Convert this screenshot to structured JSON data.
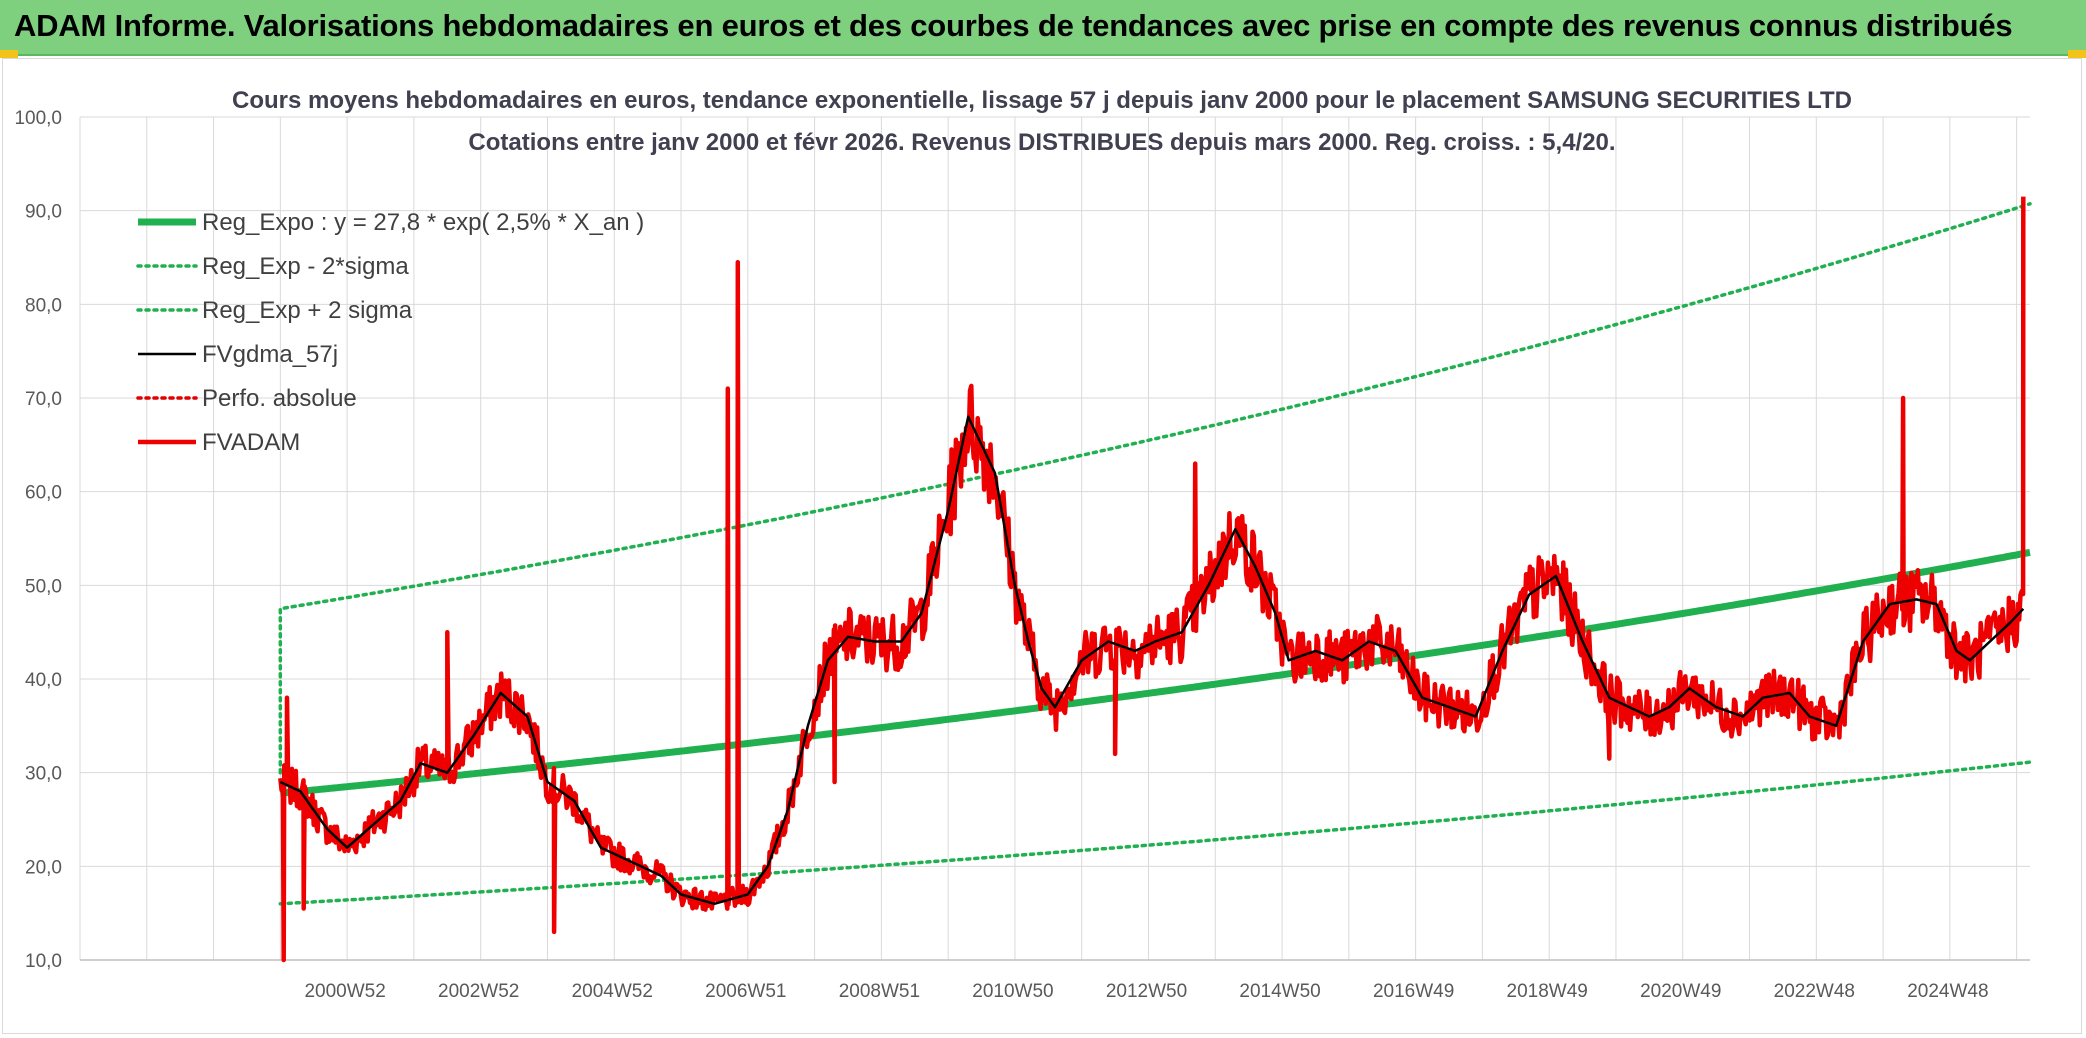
{
  "banner": {
    "title": "ADAM Informe. Valorisations hebdomadaires en euros et des courbes de tendances avec prise en compte des revenus connus distribués",
    "accent": "#7ed07e"
  },
  "chart_data": {
    "type": "line",
    "title": "Cours moyens hebdomadaires en euros, tendance exponentielle, lissage 57 j depuis janv 2000 pour le placement SAMSUNG SECURITIES LTD",
    "subtitle": "Cotations entre janv 2000 et févr 2026. Revenus DISTRIBUES depuis mars 2000. Reg. croiss. : 5,4/20.",
    "xlabel": "",
    "ylabel": "",
    "ylim": [
      10,
      100
    ],
    "xlim": [
      1997.0,
      2026.2
    ],
    "yticks": [
      "10,0",
      "20,0",
      "30,0",
      "40,0",
      "50,0",
      "60,0",
      "70,0",
      "80,0",
      "90,0",
      "100,0"
    ],
    "xticks": [
      {
        "label": "2000W52",
        "x": 2001.0
      },
      {
        "label": "2002W52",
        "x": 2003.0
      },
      {
        "label": "2004W52",
        "x": 2005.0
      },
      {
        "label": "2006W51",
        "x": 2007.0
      },
      {
        "label": "2008W51",
        "x": 2009.0
      },
      {
        "label": "2010W50",
        "x": 2011.0
      },
      {
        "label": "2012W50",
        "x": 2013.0
      },
      {
        "label": "2014W50",
        "x": 2015.0
      },
      {
        "label": "2016W49",
        "x": 2017.0
      },
      {
        "label": "2018W49",
        "x": 2019.0
      },
      {
        "label": "2020W49",
        "x": 2021.0
      },
      {
        "label": "2022W48",
        "x": 2023.0
      },
      {
        "label": "2024W48",
        "x": 2025.0
      }
    ],
    "grid": true,
    "legend_position": "top-left",
    "series": [
      {
        "name": "Reg_Expo : y = 27,8 * exp( 2,5% *  X_an )",
        "color": "#20b050",
        "style": "solid-thick",
        "kind": "exp",
        "a": 27.8,
        "rate": 0.025,
        "x0": 2000.0,
        "x_end": 2026.2
      },
      {
        "name": "Reg_Exp - 2*sigma",
        "color": "#20b050",
        "style": "dotted",
        "kind": "exp",
        "a": 16.0,
        "rate": 0.0254,
        "x0": 2000.0,
        "x_end": 2026.2
      },
      {
        "name": "Reg_Exp + 2 sigma",
        "color": "#20b050",
        "style": "dotted",
        "kind": "exp",
        "a": 47.5,
        "rate": 0.0247,
        "x0": 2000.0,
        "x_end": 2026.2,
        "start_from": 30.0
      },
      {
        "name": "FVgdma_57j",
        "color": "#000000",
        "style": "solid",
        "kind": "points",
        "x": [
          2000.0,
          2000.3,
          2000.7,
          2001.0,
          2001.4,
          2001.8,
          2002.1,
          2002.5,
          2002.9,
          2003.3,
          2003.7,
          2004.0,
          2004.4,
          2004.8,
          2005.1,
          2005.4,
          2005.7,
          2006.0,
          2006.5,
          2007.0,
          2007.3,
          2007.6,
          2007.9,
          2008.2,
          2008.5,
          2008.9,
          2009.3,
          2009.6,
          2010.0,
          2010.3,
          2010.7,
          2011.0,
          2011.2,
          2011.4,
          2011.6,
          2012.0,
          2012.4,
          2012.8,
          2013.1,
          2013.5,
          2013.9,
          2014.3,
          2014.6,
          2014.9,
          2015.1,
          2015.5,
          2015.9,
          2016.3,
          2016.7,
          2017.1,
          2017.5,
          2017.9,
          2018.3,
          2018.7,
          2019.1,
          2019.5,
          2019.9,
          2020.2,
          2020.5,
          2020.8,
          2021.1,
          2021.5,
          2021.9,
          2022.2,
          2022.6,
          2022.9,
          2023.3,
          2023.7,
          2024.1,
          2024.5,
          2024.8,
          2025.1,
          2025.3,
          2025.6,
          2025.9,
          2026.1
        ],
        "y": [
          29.0,
          28.0,
          24.0,
          22.0,
          24.5,
          27.0,
          31.0,
          30.0,
          34.0,
          38.5,
          36.0,
          29.0,
          27.0,
          22.0,
          21.0,
          20.0,
          19.0,
          17.0,
          16.0,
          17.0,
          20.0,
          26.0,
          35.0,
          42.0,
          44.5,
          44.0,
          44.0,
          47.0,
          58.0,
          68.0,
          62.0,
          50.0,
          44.0,
          39.0,
          37.0,
          42.0,
          44.0,
          43.0,
          44.0,
          45.0,
          50.0,
          56.0,
          52.0,
          47.0,
          42.0,
          43.0,
          42.0,
          44.0,
          43.0,
          38.0,
          37.0,
          36.0,
          43.0,
          49.0,
          51.0,
          44.0,
          38.0,
          37.0,
          36.0,
          37.0,
          39.0,
          37.0,
          36.0,
          38.0,
          38.5,
          36.0,
          35.0,
          44.0,
          48.0,
          48.5,
          48.0,
          43.0,
          42.0,
          44.0,
          46.0,
          47.5
        ]
      },
      {
        "name": "Perfo. absolue",
        "color": "#e00000",
        "style": "dotted",
        "kind": "none"
      },
      {
        "name": "FVADAM",
        "color": "#ee0000",
        "style": "solid-thick",
        "kind": "noisy-follow",
        "spikes": [
          {
            "x": 2000.05,
            "y": 10.0
          },
          {
            "x": 2000.1,
            "y": 38.0
          },
          {
            "x": 2000.35,
            "y": 15.5
          },
          {
            "x": 2002.5,
            "y": 45.0
          },
          {
            "x": 2004.1,
            "y": 13.0
          },
          {
            "x": 2006.7,
            "y": 71.0
          },
          {
            "x": 2006.85,
            "y": 84.5
          },
          {
            "x": 2008.3,
            "y": 29.0
          },
          {
            "x": 2010.05,
            "y": 64.5
          },
          {
            "x": 2012.5,
            "y": 32.0
          },
          {
            "x": 2013.7,
            "y": 63.0
          },
          {
            "x": 2019.9,
            "y": 31.5
          },
          {
            "x": 2024.3,
            "y": 70.0
          },
          {
            "x": 2026.1,
            "y": 91.5
          }
        ]
      }
    ]
  }
}
